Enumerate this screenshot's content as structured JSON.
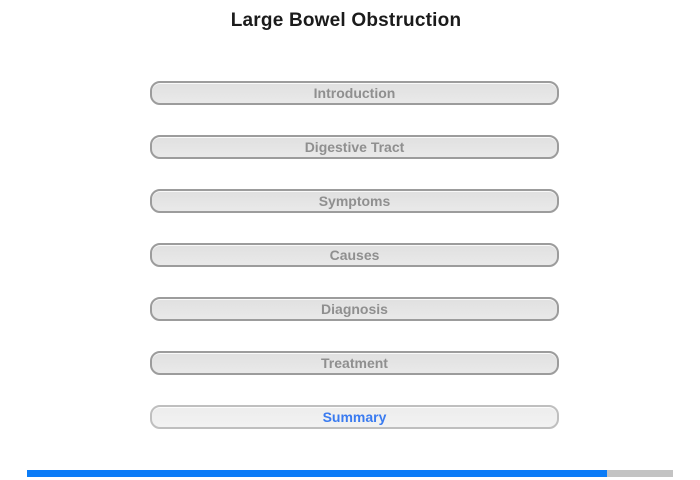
{
  "page": {
    "title": "Large Bowel Obstruction"
  },
  "menu": {
    "items": [
      {
        "label": "Introduction",
        "active": false
      },
      {
        "label": "Digestive Tract",
        "active": false
      },
      {
        "label": "Symptoms",
        "active": false
      },
      {
        "label": "Causes",
        "active": false
      },
      {
        "label": "Diagnosis",
        "active": false
      },
      {
        "label": "Treatment",
        "active": false
      },
      {
        "label": "Summary",
        "active": true
      }
    ]
  },
  "progress": {
    "percent": 89.8
  },
  "colors": {
    "progress_fill": "#0b7cf7",
    "progress_track": "#c3c3c3",
    "active_link": "#3a7bf0",
    "button_text": "#8f8f8f",
    "title_text": "#1b1b1b"
  }
}
